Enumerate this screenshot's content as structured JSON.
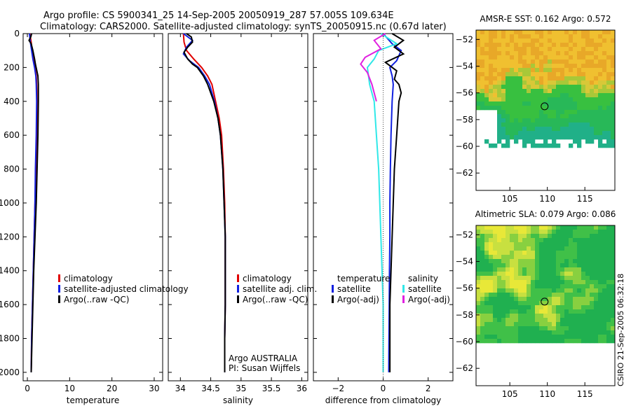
{
  "header": {
    "title_line1": "Argo profile: CS 5900341_25 14-Sep-2005 20050919_287 57.005S 109.634E",
    "title_line2": "Climatology: CARS2000. Satellite-adjusted climatology: synTS_20050915.nc (0.67d later)"
  },
  "watermark": "CSIRO 21-Sep-2005 06:32:18",
  "colors": {
    "red": "#e00000",
    "blue": "#1020e0",
    "black": "#000000",
    "cyan": "#30e8e8",
    "magenta": "#e020e0"
  },
  "chart_data": [
    {
      "type": "line",
      "id": "temperature",
      "xlabel": "temperature",
      "xlim": [
        -1,
        32
      ],
      "ylim": [
        2050,
        0
      ],
      "xticks": [
        0,
        10,
        20,
        30
      ],
      "yticks": [
        0,
        200,
        400,
        600,
        800,
        1000,
        1200,
        1400,
        1600,
        1800,
        2000
      ],
      "legend": [
        "climatology",
        "satellite-adjusted climatology",
        "Argo(..raw -QC)"
      ],
      "series": [
        {
          "name": "climatology",
          "color": "red",
          "points": [
            [
              0.6,
              0
            ],
            [
              0.9,
              50
            ],
            [
              1.1,
              100
            ],
            [
              1.4,
              150
            ],
            [
              1.8,
              200
            ],
            [
              2.1,
              250
            ],
            [
              2.2,
              300
            ],
            [
              2.3,
              400
            ],
            [
              2.2,
              600
            ],
            [
              2.0,
              800
            ],
            [
              1.8,
              1000
            ],
            [
              1.6,
              1200
            ],
            [
              1.4,
              1400
            ],
            [
              1.2,
              1600
            ],
            [
              1.0,
              1800
            ],
            [
              0.9,
              2000
            ]
          ]
        },
        {
          "name": "satellite-adjusted climatology",
          "color": "blue",
          "points": [
            [
              0.5,
              0
            ],
            [
              0.7,
              50
            ],
            [
              1.0,
              100
            ],
            [
              1.3,
              150
            ],
            [
              1.7,
              200
            ],
            [
              2.0,
              250
            ],
            [
              2.1,
              300
            ],
            [
              2.2,
              400
            ],
            [
              2.1,
              600
            ],
            [
              1.9,
              800
            ],
            [
              1.8,
              1000
            ],
            [
              1.6,
              1200
            ],
            [
              1.4,
              1400
            ],
            [
              1.2,
              1600
            ],
            [
              1.0,
              1800
            ],
            [
              0.9,
              2000
            ]
          ]
        },
        {
          "name": "Argo(..raw -QC)",
          "color": "black",
          "points": [
            [
              1.0,
              0
            ],
            [
              0.8,
              20
            ],
            [
              0.4,
              40
            ],
            [
              0.9,
              60
            ],
            [
              1.3,
              100
            ],
            [
              1.7,
              150
            ],
            [
              1.9,
              180
            ],
            [
              2.5,
              250
            ],
            [
              2.6,
              300
            ],
            [
              2.6,
              400
            ],
            [
              2.5,
              600
            ],
            [
              2.3,
              800
            ],
            [
              2.1,
              1000
            ],
            [
              1.8,
              1200
            ],
            [
              1.5,
              1400
            ],
            [
              1.3,
              1600
            ],
            [
              1.1,
              1800
            ],
            [
              0.9,
              2000
            ]
          ]
        }
      ]
    },
    {
      "type": "line",
      "id": "salinity",
      "xlabel": "salinity",
      "xlim": [
        33.8,
        36.1
      ],
      "ylim": [
        2050,
        0
      ],
      "xticks": [
        34,
        34.5,
        35,
        35.5,
        36
      ],
      "legend": [
        "climatology",
        "satellite adj. clim.",
        "Argo(..raw -QC)"
      ],
      "annotation": [
        "Argo AUSTRALIA",
        "PI: Susan Wijffels"
      ],
      "series": [
        {
          "name": "climatology",
          "color": "red",
          "points": [
            [
              34.05,
              0
            ],
            [
              34.06,
              50
            ],
            [
              34.1,
              100
            ],
            [
              34.22,
              150
            ],
            [
              34.35,
              200
            ],
            [
              34.45,
              250
            ],
            [
              34.52,
              300
            ],
            [
              34.58,
              400
            ],
            [
              34.64,
              500
            ],
            [
              34.68,
              600
            ],
            [
              34.71,
              800
            ],
            [
              34.73,
              1000
            ],
            [
              34.74,
              1200
            ],
            [
              34.74,
              1400
            ],
            [
              34.74,
              1600
            ],
            [
              34.73,
              1800
            ],
            [
              34.73,
              2000
            ]
          ]
        },
        {
          "name": "satellite adj. clim.",
          "color": "blue",
          "points": [
            [
              34.05,
              0
            ],
            [
              34.2,
              40
            ],
            [
              34.1,
              80
            ],
            [
              34.05,
              120
            ],
            [
              34.15,
              160
            ],
            [
              34.3,
              200
            ],
            [
              34.4,
              250
            ],
            [
              34.48,
              300
            ],
            [
              34.56,
              400
            ],
            [
              34.62,
              500
            ],
            [
              34.66,
              600
            ],
            [
              34.7,
              800
            ],
            [
              34.72,
              1000
            ],
            [
              34.74,
              1200
            ],
            [
              34.74,
              1400
            ],
            [
              34.74,
              1600
            ],
            [
              34.73,
              1800
            ],
            [
              34.73,
              2000
            ]
          ]
        },
        {
          "name": "Argo(..raw -QC)",
          "color": "black",
          "points": [
            [
              34.1,
              0
            ],
            [
              34.18,
              20
            ],
            [
              34.2,
              50
            ],
            [
              34.12,
              80
            ],
            [
              34.06,
              110
            ],
            [
              34.12,
              150
            ],
            [
              34.2,
              180
            ],
            [
              34.28,
              200
            ],
            [
              34.38,
              250
            ],
            [
              34.45,
              300
            ],
            [
              34.55,
              400
            ],
            [
              34.62,
              500
            ],
            [
              34.66,
              600
            ],
            [
              34.7,
              800
            ],
            [
              34.72,
              1000
            ],
            [
              34.74,
              1200
            ],
            [
              34.74,
              1400
            ],
            [
              34.74,
              1600
            ],
            [
              34.73,
              1800
            ],
            [
              34.73,
              2000
            ]
          ]
        }
      ]
    },
    {
      "type": "line",
      "id": "difference",
      "xlabel": "difference from climatology",
      "xlim": [
        -3.1,
        3.1
      ],
      "ylim": [
        2050,
        0
      ],
      "xticks": [
        -2,
        0,
        2
      ],
      "legend_left_title": "temperature",
      "legend_left": [
        "satellite",
        "Argo(-adj)"
      ],
      "legend_right_title": "salinity",
      "legend_right": [
        "satellite",
        "Argo(-adj)"
      ],
      "series": [
        {
          "name": "temperature satellite",
          "color": "blue",
          "points": [
            [
              0.0,
              0
            ],
            [
              0.4,
              60
            ],
            [
              0.8,
              100
            ],
            [
              0.6,
              160
            ],
            [
              0.3,
              200
            ],
            [
              0.4,
              250
            ],
            [
              0.45,
              300
            ],
            [
              0.4,
              400
            ],
            [
              0.35,
              600
            ],
            [
              0.32,
              800
            ],
            [
              0.3,
              1000
            ],
            [
              0.3,
              1200
            ],
            [
              0.28,
              1400
            ],
            [
              0.27,
              1600
            ],
            [
              0.26,
              1800
            ],
            [
              0.25,
              2000
            ]
          ]
        },
        {
          "name": "temperature Argo(-adj)",
          "color": "black",
          "points": [
            [
              0.4,
              0
            ],
            [
              0.9,
              40
            ],
            [
              0.5,
              80
            ],
            [
              0.9,
              120
            ],
            [
              0.1,
              170
            ],
            [
              0.6,
              220
            ],
            [
              0.5,
              270
            ],
            [
              0.7,
              300
            ],
            [
              0.8,
              350
            ],
            [
              0.7,
              400
            ],
            [
              0.6,
              600
            ],
            [
              0.5,
              800
            ],
            [
              0.45,
              1000
            ],
            [
              0.4,
              1200
            ],
            [
              0.35,
              1400
            ],
            [
              0.3,
              1600
            ],
            [
              0.3,
              1800
            ],
            [
              0.3,
              2000
            ]
          ]
        },
        {
          "name": "salinity satellite",
          "color": "cyan",
          "points": [
            [
              -0.1,
              0
            ],
            [
              0.6,
              60
            ],
            [
              -0.2,
              100
            ],
            [
              -0.4,
              150
            ],
            [
              -0.7,
              200
            ],
            [
              -0.6,
              300
            ],
            [
              -0.4,
              400
            ],
            [
              -0.3,
              600
            ],
            [
              -0.2,
              800
            ],
            [
              -0.15,
              1000
            ],
            [
              -0.1,
              1200
            ],
            [
              -0.05,
              1400
            ],
            [
              0.0,
              1600
            ],
            [
              0.0,
              1800
            ],
            [
              0.0,
              2000
            ]
          ]
        },
        {
          "name": "salinity Argo(-adj)",
          "color": "magenta",
          "points": [
            [
              0.1,
              0
            ],
            [
              -0.4,
              40
            ],
            [
              -0.1,
              90
            ],
            [
              -0.8,
              140
            ],
            [
              -1.0,
              180
            ],
            [
              -0.7,
              230
            ],
            [
              -0.5,
              300
            ],
            [
              -0.3,
              400
            ]
          ]
        }
      ]
    },
    {
      "type": "heatmap",
      "id": "sst",
      "title": "AMSR-E SST: 0.162 Argo: 0.572",
      "xlim": [
        100.5,
        119
      ],
      "ylim": [
        -63.3,
        -51.3
      ],
      "xticks": [
        105,
        110,
        115
      ],
      "yticks": [
        -52,
        -54,
        -56,
        -58,
        -60,
        -62
      ],
      "float_position": [
        109.634,
        -57.005
      ]
    },
    {
      "type": "heatmap",
      "id": "sla",
      "title": "Altimetric SLA: 0.079 Argo: 0.086",
      "xlim": [
        100.5,
        119
      ],
      "ylim": [
        -63.3,
        -51.3
      ],
      "xticks": [
        105,
        110,
        115
      ],
      "yticks": [
        -52,
        -54,
        -56,
        -58,
        -60,
        -62
      ],
      "float_position": [
        109.634,
        -57.005
      ]
    }
  ]
}
